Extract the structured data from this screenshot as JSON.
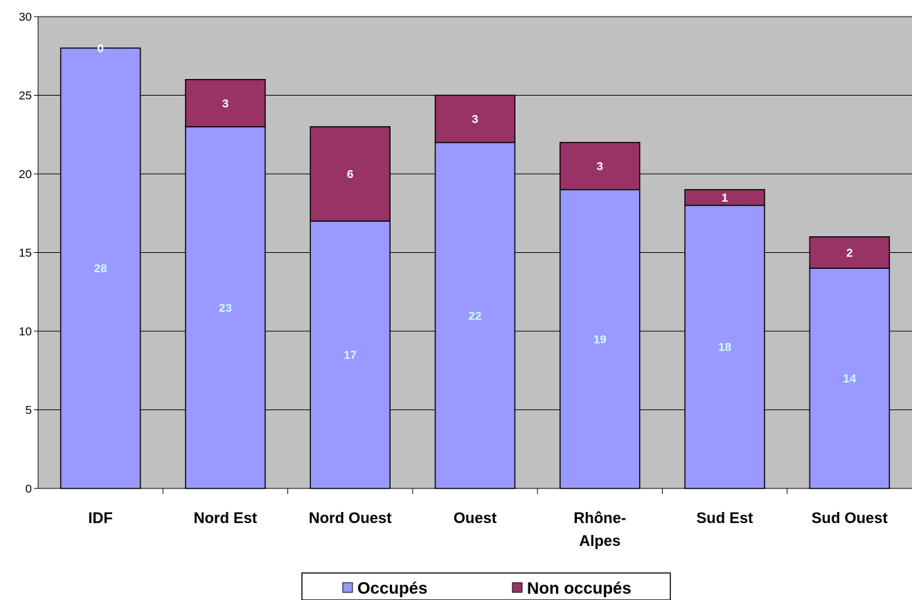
{
  "chart_data": {
    "type": "bar",
    "stacked": true,
    "categories": [
      "IDF",
      "Nord Est",
      "Nord Ouest",
      "Ouest",
      "Rhône-\nAlpes",
      "Sud Est",
      "Sud Ouest"
    ],
    "series": [
      {
        "name": "Occupés",
        "values": [
          28,
          23,
          17,
          22,
          19,
          18,
          14
        ],
        "color": "#9999ff",
        "label_color": "#ccffff"
      },
      {
        "name": "Non occupés",
        "values": [
          0,
          3,
          6,
          3,
          3,
          1,
          2
        ],
        "color": "#993366",
        "label_color": "#ffffff"
      }
    ],
    "ylim": [
      0,
      30
    ],
    "yticks": [
      0,
      5,
      10,
      15,
      20,
      25,
      30
    ],
    "grid": true,
    "plot_background": "#c0c0c0",
    "legend_position": "bottom",
    "data_labels": true
  }
}
